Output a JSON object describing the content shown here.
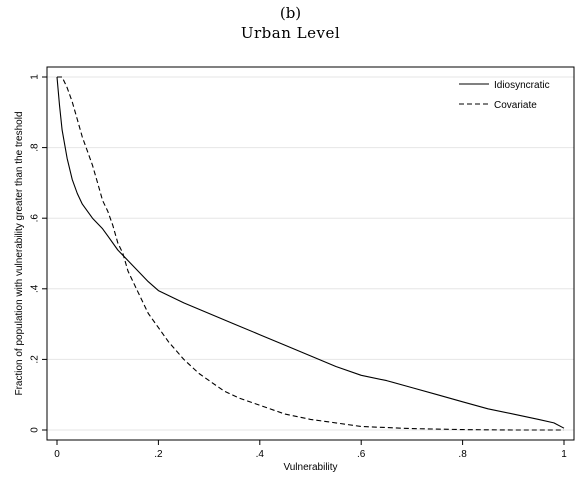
{
  "panel_label": "(b)",
  "chart_data": {
    "type": "line",
    "title": "Urban Level",
    "xlabel": "Vulnerability",
    "ylabel": "Fraction of population with vulnerability greater than the treshold",
    "xlim": [
      0,
      1
    ],
    "ylim": [
      0,
      1
    ],
    "xticks": [
      0,
      0.2,
      0.4,
      0.6,
      0.8,
      1
    ],
    "xtick_labels": [
      "0",
      ".2",
      ".4",
      ".6",
      ".8",
      "1"
    ],
    "yticks": [
      0,
      0.2,
      0.4,
      0.6,
      0.8,
      1
    ],
    "ytick_labels": [
      "0",
      ".2",
      ".4",
      ".6",
      ".8",
      "1"
    ],
    "grid": true,
    "legend_position": "top-right",
    "series": [
      {
        "name": "Idiosyncratic",
        "line_style": "solid",
        "color": "#000000",
        "x": [
          0,
          0.005,
          0.01,
          0.02,
          0.03,
          0.04,
          0.05,
          0.07,
          0.09,
          0.1,
          0.12,
          0.14,
          0.16,
          0.18,
          0.2,
          0.25,
          0.3,
          0.35,
          0.4,
          0.45,
          0.5,
          0.55,
          0.6,
          0.65,
          0.7,
          0.75,
          0.8,
          0.85,
          0.9,
          0.95,
          0.98,
          1.0
        ],
        "y": [
          1.0,
          0.92,
          0.85,
          0.77,
          0.71,
          0.67,
          0.64,
          0.6,
          0.57,
          0.55,
          0.51,
          0.48,
          0.45,
          0.42,
          0.395,
          0.36,
          0.33,
          0.3,
          0.27,
          0.24,
          0.21,
          0.18,
          0.155,
          0.14,
          0.12,
          0.1,
          0.08,
          0.06,
          0.045,
          0.03,
          0.02,
          0.005
        ]
      },
      {
        "name": "Covariate",
        "line_style": "dashed",
        "color": "#000000",
        "x": [
          0,
          0.01,
          0.02,
          0.03,
          0.04,
          0.05,
          0.06,
          0.07,
          0.08,
          0.09,
          0.1,
          0.11,
          0.12,
          0.13,
          0.14,
          0.16,
          0.18,
          0.2,
          0.22,
          0.25,
          0.28,
          0.3,
          0.33,
          0.36,
          0.4,
          0.45,
          0.5,
          0.55,
          0.6,
          0.7,
          0.8,
          0.9,
          1.0
        ],
        "y": [
          1.0,
          1.0,
          0.97,
          0.93,
          0.88,
          0.83,
          0.79,
          0.75,
          0.7,
          0.65,
          0.62,
          0.58,
          0.53,
          0.5,
          0.45,
          0.39,
          0.33,
          0.29,
          0.25,
          0.2,
          0.16,
          0.14,
          0.11,
          0.09,
          0.07,
          0.045,
          0.03,
          0.02,
          0.01,
          0.004,
          0.001,
          0.0,
          0.0
        ]
      }
    ]
  }
}
